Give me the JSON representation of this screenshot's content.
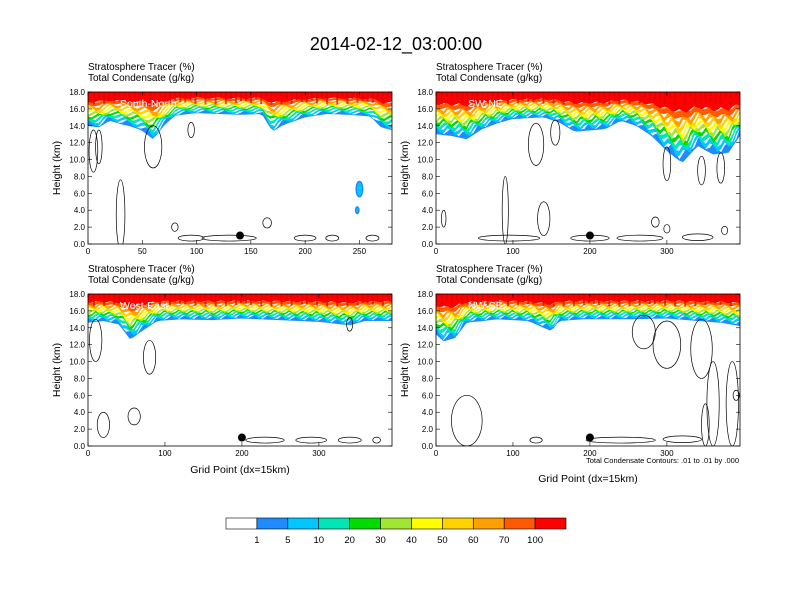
{
  "figure": {
    "title": "2014-02-12_03:00:00",
    "x_axis_label": "Grid Point (dx=15km)",
    "contour_note": "Total Condensate Contours: .01 to .01 by .000"
  },
  "colors": {
    "bands": [
      "#ffffff",
      "#1e8cff",
      "#00c8ff",
      "#00e6b4",
      "#00dc00",
      "#a0e632",
      "#ffff00",
      "#ffd200",
      "#ffa000",
      "#ff5a00",
      "#ff0000"
    ],
    "contour": "#000000"
  },
  "colorbar": {
    "labels": [
      "1",
      "5",
      "10",
      "20",
      "30",
      "40",
      "50",
      "60",
      "70",
      "100"
    ]
  },
  "chart_data": [
    {
      "type": "heatmap",
      "panel_label": "South-North",
      "title_lines": [
        "Stratosphere Tracer   (%)",
        "Total Condensate   (g/kg)"
      ],
      "ylabel": "Height (km)",
      "xlabel": "",
      "xlim": [
        0,
        280
      ],
      "ylim": [
        0,
        18
      ],
      "xticks": [
        "0",
        "50",
        "100",
        "150",
        "200",
        "250"
      ],
      "xtick_values": [
        0,
        50,
        100,
        150,
        200,
        250
      ],
      "yticks": [
        "0.0",
        "2.0",
        "4.0",
        "6.0",
        "8.0",
        "10.0",
        "12.0",
        "14.0",
        "16.0",
        "18.0"
      ],
      "marker": {
        "x": 140,
        "y": 1.0
      },
      "tracer_bottom_km": [
        [
          0,
          14.0
        ],
        [
          10,
          13.8
        ],
        [
          20,
          14.6
        ],
        [
          30,
          14.2
        ],
        [
          40,
          13.9
        ],
        [
          50,
          13.4
        ],
        [
          60,
          12.4
        ],
        [
          70,
          14.0
        ],
        [
          80,
          15.2
        ],
        [
          100,
          15.5
        ],
        [
          120,
          15.4
        ],
        [
          140,
          15.3
        ],
        [
          160,
          15.4
        ],
        [
          170,
          13.3
        ],
        [
          180,
          14.1
        ],
        [
          200,
          15.0
        ],
        [
          220,
          15.4
        ],
        [
          240,
          15.3
        ],
        [
          260,
          15.1
        ],
        [
          270,
          13.8
        ],
        [
          280,
          13.5
        ]
      ],
      "blobs": [
        {
          "x": 250,
          "y": 6.5,
          "rx": 3,
          "ry": 0.9
        },
        {
          "x": 248,
          "y": 4.0,
          "rx": 1.5,
          "ry": 0.4
        }
      ],
      "contours": [
        {
          "cx": 30,
          "cy": 3.5,
          "rx": 4,
          "ry": 4.1
        },
        {
          "cx": 5,
          "cy": 11.0,
          "rx": 4,
          "ry": 2.5
        },
        {
          "cx": 10,
          "cy": 11.5,
          "rx": 3,
          "ry": 2
        },
        {
          "cx": 60,
          "cy": 11.5,
          "rx": 8,
          "ry": 2.5
        },
        {
          "cx": 95,
          "cy": 0.7,
          "rx": 12,
          "ry": 0.35
        },
        {
          "cx": 130,
          "cy": 0.7,
          "rx": 25,
          "ry": 0.35
        },
        {
          "cx": 200,
          "cy": 0.7,
          "rx": 10,
          "ry": 0.35
        },
        {
          "cx": 225,
          "cy": 0.7,
          "rx": 6,
          "ry": 0.35
        },
        {
          "cx": 262,
          "cy": 0.7,
          "rx": 6,
          "ry": 0.35
        },
        {
          "cx": 165,
          "cy": 2.5,
          "rx": 4,
          "ry": 0.6
        },
        {
          "cx": 80,
          "cy": 2.0,
          "rx": 3,
          "ry": 0.5
        },
        {
          "cx": 95,
          "cy": 13.5,
          "rx": 3,
          "ry": 0.9
        }
      ]
    },
    {
      "type": "heatmap",
      "panel_label": "SW-NE",
      "title_lines": [
        "Stratosphere Tracer   (%)",
        "Total Condensate   (g/kg)"
      ],
      "ylabel": "Height (km)",
      "xlabel": "",
      "xlim": [
        0,
        395
      ],
      "ylim": [
        0,
        18
      ],
      "xticks": [
        "0",
        "100",
        "200",
        "300"
      ],
      "xtick_values": [
        0,
        100,
        200,
        300
      ],
      "yticks": [
        "0.0",
        "2.0",
        "4.0",
        "6.0",
        "8.0",
        "10.0",
        "12.0",
        "14.0",
        "16.0",
        "18.0"
      ],
      "marker": {
        "x": 200,
        "y": 1.0
      },
      "tracer_bottom_km": [
        [
          0,
          13.0
        ],
        [
          20,
          12.8
        ],
        [
          40,
          12.4
        ],
        [
          60,
          13.6
        ],
        [
          80,
          14.3
        ],
        [
          100,
          14.8
        ],
        [
          140,
          15.0
        ],
        [
          160,
          14.4
        ],
        [
          180,
          13.3
        ],
        [
          220,
          13.6
        ],
        [
          240,
          14.6
        ],
        [
          260,
          14.0
        ],
        [
          280,
          12.8
        ],
        [
          300,
          11.0
        ],
        [
          320,
          9.6
        ],
        [
          340,
          11.6
        ],
        [
          360,
          10.6
        ],
        [
          380,
          10.8
        ],
        [
          395,
          12.8
        ]
      ],
      "blobs": [],
      "contours": [
        {
          "cx": 90,
          "cy": 4.0,
          "rx": 4,
          "ry": 4.0
        },
        {
          "cx": 140,
          "cy": 3.0,
          "rx": 8,
          "ry": 2.0
        },
        {
          "cx": 95,
          "cy": 0.7,
          "rx": 40,
          "ry": 0.35
        },
        {
          "cx": 200,
          "cy": 0.7,
          "rx": 25,
          "ry": 0.35
        },
        {
          "cx": 265,
          "cy": 0.7,
          "rx": 30,
          "ry": 0.35
        },
        {
          "cx": 340,
          "cy": 0.8,
          "rx": 20,
          "ry": 0.4
        },
        {
          "cx": 375,
          "cy": 1.6,
          "rx": 4,
          "ry": 0.5
        },
        {
          "cx": 285,
          "cy": 2.6,
          "rx": 5,
          "ry": 0.6
        },
        {
          "cx": 300,
          "cy": 1.8,
          "rx": 4,
          "ry": 0.5
        },
        {
          "cx": 130,
          "cy": 11.8,
          "rx": 10,
          "ry": 2.5
        },
        {
          "cx": 155,
          "cy": 13.2,
          "rx": 6,
          "ry": 1.5
        },
        {
          "cx": 300,
          "cy": 9.5,
          "rx": 5,
          "ry": 2
        },
        {
          "cx": 345,
          "cy": 8.7,
          "rx": 5,
          "ry": 1.7
        },
        {
          "cx": 370,
          "cy": 9.0,
          "rx": 5,
          "ry": 1.8
        },
        {
          "cx": 10,
          "cy": 3.0,
          "rx": 3,
          "ry": 1.0
        }
      ]
    },
    {
      "type": "heatmap",
      "panel_label": "West-East",
      "title_lines": [
        "Stratosphere Tracer   (%)",
        "Total Condensate   (g/kg)"
      ],
      "ylabel": "Height (km)",
      "xlabel": "Grid Point (dx=15km)",
      "xlim": [
        0,
        395
      ],
      "ylim": [
        0,
        18
      ],
      "xticks": [
        "0",
        "100",
        "200",
        "300"
      ],
      "xtick_values": [
        0,
        100,
        200,
        300
      ],
      "yticks": [
        "0.0",
        "2.0",
        "4.0",
        "6.0",
        "8.0",
        "10.0",
        "12.0",
        "14.0",
        "16.0",
        "18.0"
      ],
      "marker": {
        "x": 200,
        "y": 1.0
      },
      "tracer_bottom_km": [
        [
          0,
          14.6
        ],
        [
          20,
          14.8
        ],
        [
          40,
          14.4
        ],
        [
          55,
          12.6
        ],
        [
          70,
          13.6
        ],
        [
          90,
          14.8
        ],
        [
          120,
          15.0
        ],
        [
          160,
          14.9
        ],
        [
          200,
          15.1
        ],
        [
          250,
          14.9
        ],
        [
          300,
          14.7
        ],
        [
          340,
          14.3
        ],
        [
          360,
          14.8
        ],
        [
          395,
          14.8
        ]
      ],
      "blobs": [],
      "contours": [
        {
          "cx": 10,
          "cy": 12.5,
          "rx": 8,
          "ry": 2.5
        },
        {
          "cx": 80,
          "cy": 10.5,
          "rx": 8,
          "ry": 2.0
        },
        {
          "cx": 20,
          "cy": 2.5,
          "rx": 8,
          "ry": 1.5
        },
        {
          "cx": 60,
          "cy": 3.5,
          "rx": 8,
          "ry": 1.0
        },
        {
          "cx": 230,
          "cy": 0.7,
          "rx": 25,
          "ry": 0.35
        },
        {
          "cx": 290,
          "cy": 0.7,
          "rx": 20,
          "ry": 0.35
        },
        {
          "cx": 340,
          "cy": 0.7,
          "rx": 15,
          "ry": 0.35
        },
        {
          "cx": 375,
          "cy": 0.7,
          "rx": 5,
          "ry": 0.35
        },
        {
          "cx": 340,
          "cy": 14.4,
          "rx": 4,
          "ry": 0.8
        }
      ]
    },
    {
      "type": "heatmap",
      "panel_label": "NW-SE",
      "title_lines": [
        "Stratosphere Tracer   (%)",
        "Total Condensate   (g/kg)"
      ],
      "ylabel": "Height (km)",
      "xlabel": "Grid Point (dx=15km)",
      "xlim": [
        0,
        395
      ],
      "ylim": [
        0,
        18
      ],
      "xticks": [
        "0",
        "100",
        "200",
        "300"
      ],
      "xtick_values": [
        0,
        100,
        200,
        300
      ],
      "yticks": [
        "0.0",
        "2.0",
        "4.0",
        "6.0",
        "8.0",
        "10.0",
        "12.0",
        "14.0",
        "16.0",
        "18.0"
      ],
      "marker": {
        "x": 200,
        "y": 1.0
      },
      "tracer_bottom_km": [
        [
          0,
          13.2
        ],
        [
          10,
          12.4
        ],
        [
          25,
          12.8
        ],
        [
          40,
          14.6
        ],
        [
          80,
          15.0
        ],
        [
          120,
          14.8
        ],
        [
          150,
          13.6
        ],
        [
          160,
          14.8
        ],
        [
          190,
          15.0
        ],
        [
          250,
          15.0
        ],
        [
          300,
          15.1
        ],
        [
          340,
          14.8
        ],
        [
          370,
          14.6
        ],
        [
          395,
          14.2
        ]
      ],
      "blobs": [],
      "contours": [
        {
          "cx": 40,
          "cy": 3.0,
          "rx": 20,
          "ry": 3.0
        },
        {
          "cx": 270,
          "cy": 13.5,
          "rx": 15,
          "ry": 2.0
        },
        {
          "cx": 300,
          "cy": 12.0,
          "rx": 18,
          "ry": 2.8
        },
        {
          "cx": 345,
          "cy": 11.5,
          "rx": 14,
          "ry": 3.5
        },
        {
          "cx": 360,
          "cy": 5.0,
          "rx": 8,
          "ry": 5
        },
        {
          "cx": 385,
          "cy": 5.0,
          "rx": 8,
          "ry": 5
        },
        {
          "cx": 350,
          "cy": 2.5,
          "rx": 5,
          "ry": 2.5
        },
        {
          "cx": 240,
          "cy": 0.7,
          "rx": 45,
          "ry": 0.35
        },
        {
          "cx": 320,
          "cy": 0.8,
          "rx": 25,
          "ry": 0.4
        },
        {
          "cx": 130,
          "cy": 0.7,
          "rx": 8,
          "ry": 0.35
        },
        {
          "cx": 390,
          "cy": 6.0,
          "rx": 4,
          "ry": 0.6
        }
      ]
    }
  ]
}
